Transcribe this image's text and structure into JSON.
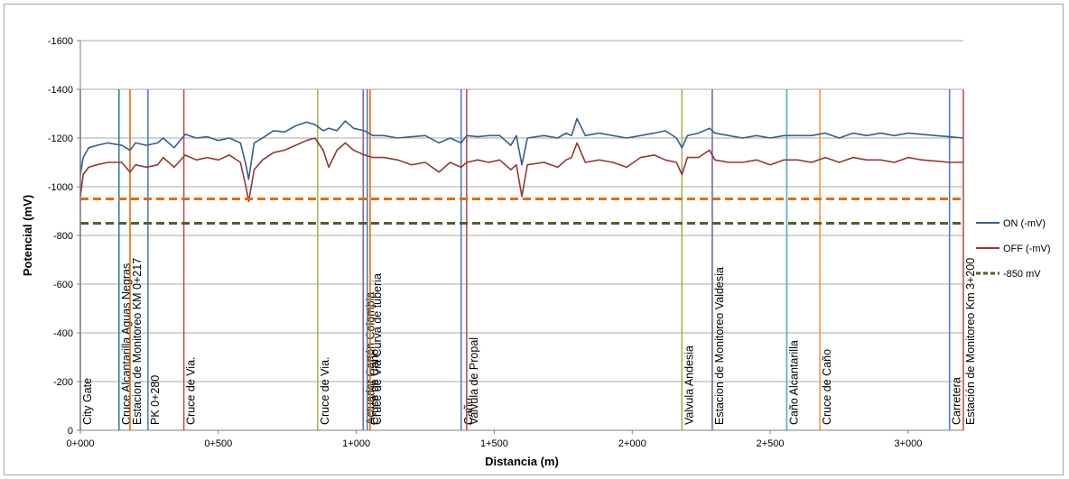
{
  "chart_data": {
    "type": "line",
    "xlabel": "Distancia (m)",
    "ylabel": "Potencial (mV)",
    "xlim": [
      0,
      3200
    ],
    "ylim": [
      0,
      -1600
    ],
    "x_ticks": [
      {
        "value": 0,
        "label": "0+000"
      },
      {
        "value": 500,
        "label": "0+500"
      },
      {
        "value": 1000,
        "label": "1+000"
      },
      {
        "value": 1500,
        "label": "1+500"
      },
      {
        "value": 2000,
        "label": "2+000"
      },
      {
        "value": 2500,
        "label": "2+500"
      },
      {
        "value": 3000,
        "label": "3+000"
      }
    ],
    "y_ticks": [
      {
        "value": 0,
        "label": "0"
      },
      {
        "value": -200,
        "label": "-200"
      },
      {
        "value": -400,
        "label": "-400"
      },
      {
        "value": -600,
        "label": "-600"
      },
      {
        "value": -800,
        "label": "-800"
      },
      {
        "value": -1000,
        "label": "-1000"
      },
      {
        "value": -1200,
        "label": "-1200"
      },
      {
        "value": -1400,
        "label": "-1400"
      },
      {
        "value": -1600,
        "label": "-1600"
      }
    ],
    "grid": true,
    "legend_position": "right",
    "series": [
      {
        "name": "ON (-mV)",
        "color": "#365f91",
        "style": "solid",
        "x": [
          0,
          10,
          30,
          60,
          100,
          150,
          180,
          200,
          240,
          280,
          300,
          340,
          380,
          420,
          460,
          500,
          540,
          580,
          600,
          610,
          630,
          660,
          700,
          740,
          780,
          820,
          850,
          880,
          900,
          930,
          960,
          990,
          1010,
          1030,
          1060,
          1100,
          1150,
          1200,
          1250,
          1300,
          1340,
          1380,
          1400,
          1440,
          1480,
          1520,
          1560,
          1580,
          1600,
          1620,
          1680,
          1730,
          1760,
          1780,
          1800,
          1830,
          1880,
          1930,
          1980,
          2030,
          2080,
          2120,
          2160,
          2180,
          2200,
          2240,
          2280,
          2300,
          2350,
          2400,
          2450,
          2500,
          2550,
          2600,
          2650,
          2700,
          2750,
          2800,
          2850,
          2900,
          2950,
          3000,
          3050,
          3100,
          3150,
          3200
        ],
        "y": [
          -1050,
          -1120,
          -1160,
          -1170,
          -1180,
          -1170,
          -1150,
          -1180,
          -1170,
          -1180,
          -1200,
          -1160,
          -1215,
          -1200,
          -1205,
          -1190,
          -1200,
          -1180,
          -1090,
          -1030,
          -1180,
          -1200,
          -1230,
          -1225,
          -1250,
          -1265,
          -1255,
          -1230,
          -1240,
          -1230,
          -1270,
          -1240,
          -1235,
          -1230,
          -1210,
          -1210,
          -1200,
          -1205,
          -1210,
          -1180,
          -1200,
          -1180,
          -1210,
          -1205,
          -1210,
          -1210,
          -1170,
          -1210,
          -1090,
          -1200,
          -1210,
          -1200,
          -1220,
          -1210,
          -1280,
          -1210,
          -1220,
          -1210,
          -1200,
          -1210,
          -1220,
          -1230,
          -1200,
          -1160,
          -1210,
          -1220,
          -1240,
          -1220,
          -1210,
          -1200,
          -1210,
          -1200,
          -1210,
          -1210,
          -1210,
          -1220,
          -1200,
          -1220,
          -1210,
          -1220,
          -1210,
          -1220,
          -1215,
          -1210,
          -1205,
          -1200
        ]
      },
      {
        "name": "OFF (-mV)",
        "color": "#953735",
        "style": "solid",
        "x": [
          0,
          10,
          30,
          60,
          100,
          150,
          180,
          200,
          240,
          280,
          300,
          340,
          380,
          420,
          460,
          500,
          540,
          580,
          600,
          610,
          630,
          660,
          700,
          740,
          780,
          820,
          850,
          880,
          900,
          930,
          960,
          990,
          1010,
          1030,
          1060,
          1100,
          1150,
          1200,
          1250,
          1300,
          1340,
          1380,
          1400,
          1440,
          1480,
          1520,
          1560,
          1580,
          1600,
          1620,
          1680,
          1730,
          1760,
          1780,
          1800,
          1830,
          1880,
          1930,
          1980,
          2030,
          2080,
          2120,
          2160,
          2180,
          2200,
          2240,
          2280,
          2300,
          2350,
          2400,
          2450,
          2500,
          2550,
          2600,
          2650,
          2700,
          2750,
          2800,
          2850,
          2900,
          2950,
          3000,
          3050,
          3100,
          3150,
          3200
        ],
        "y": [
          -960,
          -1050,
          -1080,
          -1090,
          -1100,
          -1100,
          -1060,
          -1090,
          -1080,
          -1090,
          -1120,
          -1080,
          -1130,
          -1110,
          -1120,
          -1110,
          -1130,
          -1100,
          -1000,
          -940,
          -1070,
          -1110,
          -1140,
          -1150,
          -1170,
          -1190,
          -1200,
          -1150,
          -1080,
          -1150,
          -1180,
          -1150,
          -1140,
          -1130,
          -1120,
          -1120,
          -1110,
          -1090,
          -1100,
          -1060,
          -1100,
          -1080,
          -1100,
          -1110,
          -1100,
          -1110,
          -1070,
          -1090,
          -960,
          -1090,
          -1100,
          -1080,
          -1110,
          -1120,
          -1180,
          -1100,
          -1110,
          -1100,
          -1080,
          -1120,
          -1130,
          -1110,
          -1100,
          -1050,
          -1120,
          -1120,
          -1150,
          -1110,
          -1100,
          -1100,
          -1110,
          -1090,
          -1110,
          -1110,
          -1100,
          -1120,
          -1100,
          -1120,
          -1110,
          -1110,
          -1100,
          -1120,
          -1110,
          -1105,
          -1100,
          -1100
        ]
      },
      {
        "name": "",
        "color": "#e46c0a",
        "style": "dashed",
        "x": [
          0,
          3200
        ],
        "y": [
          -950,
          -950
        ]
      },
      {
        "name": "-850 mV",
        "color": "#4f6228",
        "style": "dashed",
        "x": [
          0,
          3200
        ],
        "y": [
          -850,
          -850
        ]
      }
    ],
    "events": [
      {
        "x": 0,
        "label": "City Gate",
        "color": "#8064a2"
      },
      {
        "x": 140,
        "label": "Cruce Alcantarilla Aguas Negras",
        "color": "#31859c"
      },
      {
        "x": 180,
        "label": "Estacion de Monitoreo KM 0+217",
        "color": "#e46c0a"
      },
      {
        "x": 245,
        "label": "PK 0+280",
        "color": "#4f81bd"
      },
      {
        "x": 375,
        "label": "Cruce de Via.",
        "color": "#c0504d"
      },
      {
        "x": 860,
        "label": "Cruce de Via.",
        "color": "#9bbb59"
      },
      {
        "x": 1025,
        "label": "Actuador Cartón Colombia",
        "color": "#8064a2"
      },
      {
        "x": 1040,
        "label": "Cruce de Caño",
        "color": "#4f81bd"
      },
      {
        "x": 1050,
        "label": "Cruce de Via Curva de tuberia",
        "color": "#e46c0a"
      },
      {
        "x": 1380,
        "label": "Caño",
        "color": "#4f81bd"
      },
      {
        "x": 1400,
        "label": "Valvula de Propal",
        "color": "#c0504d"
      },
      {
        "x": 2180,
        "label": "Valvula Andesia",
        "color": "#9bbb59"
      },
      {
        "x": 2290,
        "label": "Estacion de Monitoreo Valdesia",
        "color": "#8064a2"
      },
      {
        "x": 2560,
        "label": "Caño Alcantarilla",
        "color": "#4bacc6"
      },
      {
        "x": 2680,
        "label": "Cruce de Caño",
        "color": "#f79646"
      },
      {
        "x": 3150,
        "label": "Carretera",
        "color": "#4f81bd"
      },
      {
        "x": 3200,
        "label": "Estación de Monitoreo Km 3+200",
        "color": "#c0504d"
      }
    ]
  }
}
